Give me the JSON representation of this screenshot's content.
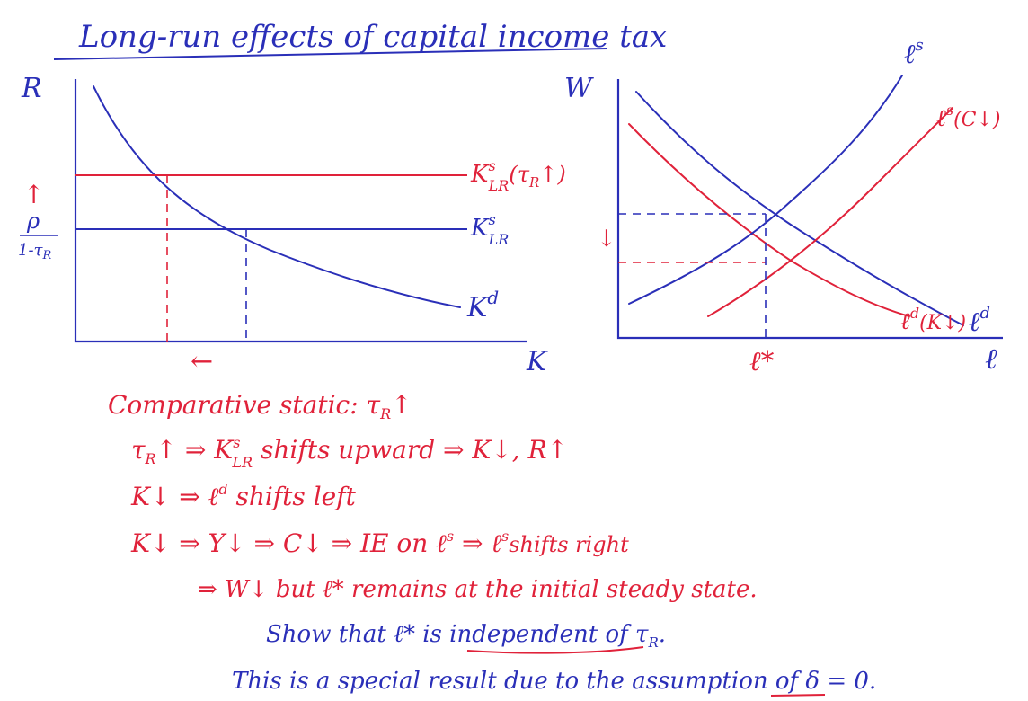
{
  "title": "Long-run effects of capital income tax",
  "left_graph": {
    "y_label": "R",
    "x_label": "K",
    "ks_label": "K",
    "ks_sup": "s",
    "ks_sub": "LR",
    "ks_shift_suffix": "(τ",
    "ks_shift_sub": "R",
    "ks_shift_arrow": "↑)",
    "kd_label": "K",
    "kd_sup": "d",
    "rate_num": "ρ",
    "rate_den": "1-τ",
    "rate_den_sub": "R",
    "up_arrow": "↑",
    "left_arrow": "←"
  },
  "right_graph": {
    "y_label": "W",
    "x_label": "ℓ",
    "ls_label": "ℓ",
    "ls_sup": "s",
    "ls_shift_label": "ℓ",
    "ls_shift_sup": "s",
    "ls_shift_suffix": "(C↓)",
    "ld_label": "ℓ",
    "ld_sup": "d",
    "ld_shift_label": "ℓ",
    "ld_shift_sup": "d",
    "ld_shift_suffix": "(K↓)",
    "lstar": "ℓ*",
    "down_arrow": "↓"
  },
  "notes": {
    "line1": "Comparative static: τ",
    "line1_sub": "R",
    "line1_end": "↑",
    "line2_a": "τ",
    "line2_a_sub": "R",
    "line2_b": "↑ ⇒ K",
    "line2_b_sup": "s",
    "line2_b_sub": "LR",
    "line2_c": " shifts upward ⇒ K↓, R↑",
    "line3_a": "K↓ ⇒ ℓ",
    "line3_a_sup": "d",
    "line3_b": " shifts left",
    "line4_a": "K↓ ⇒ Y↓ ⇒ C↓ ⇒ IE on ℓ",
    "line4_a_sup": "s",
    "line4_b": " ⇒ ℓ",
    "line4_b_sup": "s",
    "line4_c": "shifts right",
    "line5": "⇒ W↓ but ℓ* remains at the initial steady state.",
    "line6_a": "Show that ℓ* is ",
    "line6_b": "independent of τ",
    "line6_b_sub": "R",
    "line6_c": ".",
    "line7_a": "This is a special result due to the assumption of ",
    "line7_b": "δ = 0."
  }
}
